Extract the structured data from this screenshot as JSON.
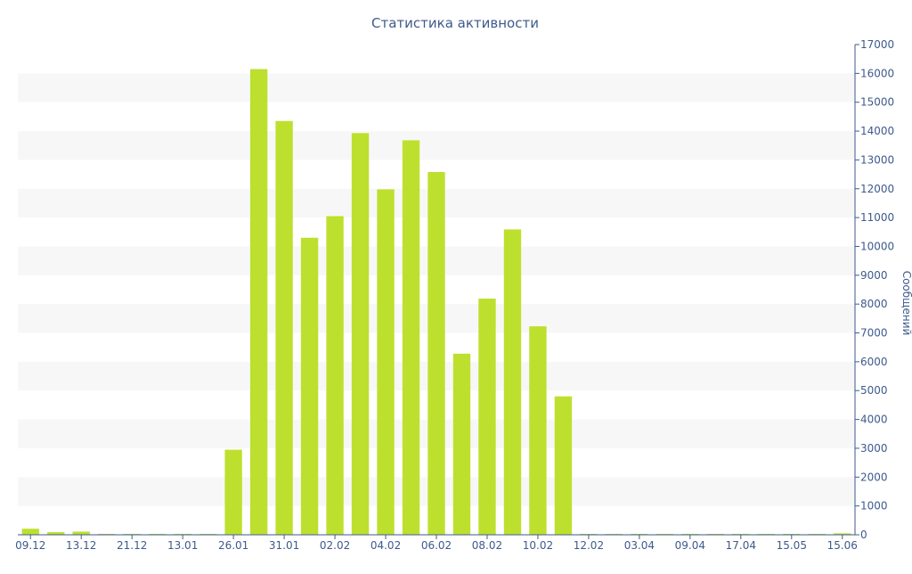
{
  "chart_data": {
    "type": "bar",
    "title": "Статистика активности",
    "xlabel": "",
    "ylabel": "Сообщений",
    "ylim": [
      0,
      17000
    ],
    "yticks": [
      0,
      1000,
      2000,
      3000,
      4000,
      5000,
      6000,
      7000,
      8000,
      9000,
      10000,
      11000,
      12000,
      13000,
      14000,
      15000,
      16000,
      17000
    ],
    "y_axis_position": "right",
    "grid": "alternating horizontal bands",
    "legend": "none",
    "bar_color": "#bde02e",
    "text_color": "#3e5a8c",
    "band_color": "#f7f7f7",
    "x_tick_labels": [
      "09.12",
      "13.12",
      "21.12",
      "13.01",
      "26.01",
      "31.01",
      "02.02",
      "04.02",
      "06.02",
      "08.02",
      "10.02",
      "12.02",
      "03.04",
      "09.04",
      "17.04",
      "15.05",
      "15.06"
    ],
    "x_tick_positions": [
      0,
      2,
      4,
      6,
      8,
      10,
      12,
      14,
      16,
      18,
      20,
      22,
      24,
      26,
      28,
      30,
      32
    ],
    "values": [
      210,
      90,
      110,
      30,
      30,
      30,
      30,
      30,
      2950,
      16150,
      14350,
      10300,
      11050,
      13930,
      11980,
      13680,
      12580,
      6280,
      8190,
      10590,
      7230,
      4800,
      30,
      30,
      30,
      30,
      30,
      30,
      30,
      30,
      30,
      30,
      50
    ]
  }
}
